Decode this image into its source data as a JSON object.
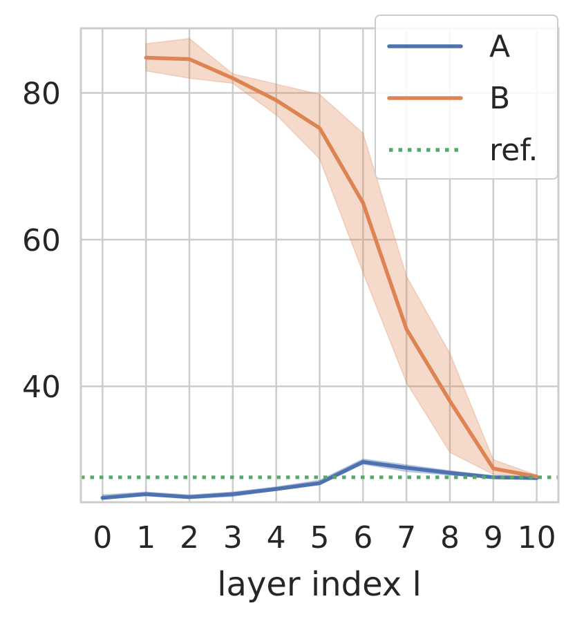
{
  "chart_data": {
    "type": "line",
    "title": "",
    "xlabel": "layer index l",
    "ylabel": "",
    "x": [
      0,
      1,
      2,
      3,
      4,
      5,
      6,
      7,
      8,
      9,
      10
    ],
    "xlim": [
      -0.5,
      10.5
    ],
    "ylim": [
      24.2,
      88.8
    ],
    "y_ticks": [
      40,
      60,
      80
    ],
    "grid": true,
    "legend_position": "top-right",
    "series": [
      {
        "name": "A",
        "color": "#4c72b0",
        "style": "solid",
        "x": [
          0,
          1,
          2,
          3,
          4,
          5,
          6,
          7,
          8,
          9,
          10
        ],
        "y": [
          24.8,
          25.3,
          24.9,
          25.3,
          26.0,
          26.8,
          29.7,
          28.9,
          28.2,
          27.6,
          27.5
        ],
        "band_lower": [
          24.6,
          25.1,
          24.7,
          25.0,
          25.8,
          26.6,
          29.4,
          28.4,
          27.9,
          27.5,
          27.4
        ],
        "band_upper": [
          25.2,
          25.6,
          25.2,
          25.6,
          26.3,
          27.2,
          30.1,
          29.3,
          28.5,
          27.8,
          27.6
        ]
      },
      {
        "name": "B",
        "color": "#dd8452",
        "style": "solid",
        "x": [
          1,
          2,
          3,
          4,
          5,
          6,
          7,
          8,
          9,
          10
        ],
        "y": [
          84.8,
          84.6,
          82.0,
          79.0,
          75.2,
          65.0,
          47.8,
          38.0,
          28.8,
          27.7
        ],
        "band_lower": [
          83.0,
          82.0,
          81.3,
          77.0,
          71.0,
          55.5,
          40.5,
          31.0,
          28.0,
          27.5
        ],
        "band_upper": [
          86.7,
          87.4,
          82.6,
          81.2,
          79.8,
          74.5,
          55.0,
          44.5,
          30.0,
          27.9
        ]
      },
      {
        "name": "ref.",
        "color": "#55a868",
        "style": "dotted",
        "x": [
          -0.5,
          10.5
        ],
        "y": [
          27.6,
          27.6
        ]
      }
    ]
  }
}
